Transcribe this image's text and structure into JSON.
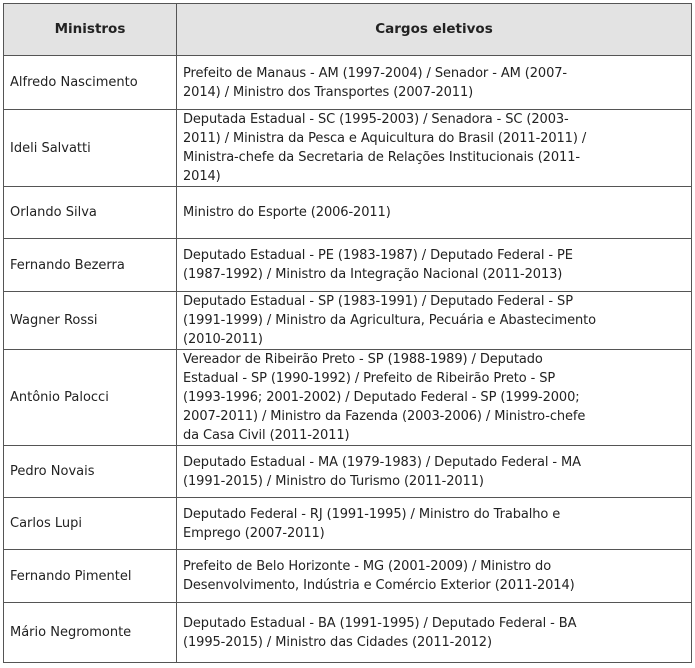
{
  "table": {
    "headers": [
      "Ministros",
      "Cargos eletivos"
    ],
    "rows": [
      {
        "name": "Alfredo Nascimento",
        "lines": [
          "Prefeito de Manaus - AM (1997-2004) / Senador - AM (2007-",
          "2014) / Ministro dos Transportes (2007-2011)"
        ]
      },
      {
        "name": "Ideli Salvatti",
        "lines": [
          "Deputada Estadual - SC (1995-2003) / Senadora - SC (2003-",
          "2011) / Ministra da Pesca e Aquicultura do Brasil (2011-2011) /",
          "Ministra-chefe da Secretaria de Relações Institucionais (2011-",
          "2014)"
        ]
      },
      {
        "name": "Orlando Silva",
        "lines": [
          "Ministro do Esporte (2006-2011)"
        ]
      },
      {
        "name": "Fernando Bezerra",
        "lines": [
          "Deputado Estadual - PE (1983-1987) / Deputado Federal - PE",
          "(1987-1992) / Ministro da Integração Nacional (2011-2013)"
        ]
      },
      {
        "name": "Wagner Rossi",
        "lines": [
          "Deputado Estadual - SP (1983-1991) / Deputado Federal - SP",
          "(1991-1999) / Ministro da Agricultura, Pecuária e Abastecimento",
          "(2010-2011)"
        ]
      },
      {
        "name": "Antônio Palocci",
        "lines": [
          "Vereador de Ribeirão Preto - SP (1988-1989) / Deputado",
          "Estadual - SP (1990-1992) / Prefeito de Ribeirão Preto - SP",
          "(1993-1996; 2001-2002) / Deputado Federal - SP (1999-2000;",
          "2007-2011) / Ministro da Fazenda (2003-2006) / Ministro-chefe",
          "da Casa Civil (2011-2011)"
        ]
      },
      {
        "name": "Pedro Novais",
        "lines": [
          "Deputado Estadual - MA (1979-1983) / Deputado Federal - MA",
          "(1991-2015) / Ministro do Turismo (2011-2011)"
        ]
      },
      {
        "name": "Carlos Lupi",
        "lines": [
          "Deputado Federal - RJ (1991-1995) / Ministro do Trabalho e",
          "Emprego (2007-2011)"
        ]
      },
      {
        "name": "Fernando Pimentel",
        "lines": [
          "Prefeito de Belo Horizonte - MG (2001-2009) / Ministro do",
          "Desenvolvimento, Indústria e Comércio Exterior (2011-2014)"
        ]
      },
      {
        "name": "Mário Negromonte",
        "lines": [
          "Deputado Estadual - BA (1991-1995) / Deputado Federal - BA",
          "(1995-2015) / Ministro das Cidades (2011-2012)"
        ]
      }
    ]
  }
}
